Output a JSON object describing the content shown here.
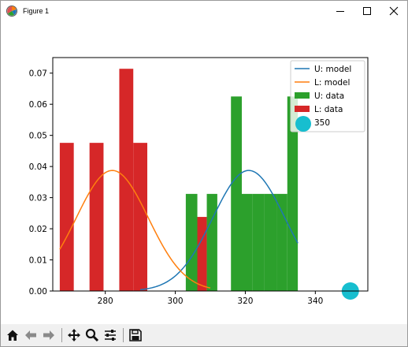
{
  "window": {
    "title": "Figure 1",
    "icons": {
      "app": "matplotlib-figure-icon",
      "minimize": "minimize-icon",
      "maximize": "maximize-icon",
      "close": "close-icon"
    }
  },
  "toolbar": {
    "items": [
      {
        "name": "home-icon"
      },
      {
        "name": "back-arrow-icon"
      },
      {
        "name": "forward-arrow-icon"
      },
      {
        "name": "pan-move-icon"
      },
      {
        "name": "zoom-magnifier-icon"
      },
      {
        "name": "configure-subplots-icon"
      },
      {
        "name": "save-floppy-icon"
      }
    ]
  },
  "chart_data": {
    "type": "bar",
    "xlim": [
      265,
      355
    ],
    "ylim": [
      0,
      0.075
    ],
    "x_ticks": [
      280,
      300,
      320,
      340
    ],
    "y_ticks": [
      0.0,
      0.01,
      0.02,
      0.03,
      0.04,
      0.05,
      0.06,
      0.07
    ],
    "x_tick_labels": [
      "280",
      "300",
      "320",
      "340"
    ],
    "y_tick_labels": [
      "0.00",
      "0.01",
      "0.02",
      "0.03",
      "0.04",
      "0.05",
      "0.06",
      "0.07"
    ],
    "grid": false,
    "legend_position": "top-right",
    "legend": [
      {
        "label": "U: model",
        "kind": "line",
        "color": "#1f77b4"
      },
      {
        "label": "L: model",
        "kind": "line",
        "color": "#ff7f0e"
      },
      {
        "label": "U: data",
        "kind": "patch",
        "color": "#2ca02c"
      },
      {
        "label": "L: data",
        "kind": "patch",
        "color": "#d62728"
      },
      {
        "label": "350",
        "kind": "marker",
        "color": "#17becf"
      }
    ],
    "series": [
      {
        "name": "U: data",
        "type": "histogram",
        "color": "#2ca02c",
        "bins": [
          {
            "x0": 303.0,
            "x1": 306.3,
            "y": 0.0312
          },
          {
            "x0": 309.0,
            "x1": 312.0,
            "y": 0.0312
          },
          {
            "x0": 315.9,
            "x1": 319.0,
            "y": 0.0625
          },
          {
            "x0": 319.0,
            "x1": 322.0,
            "y": 0.0312
          },
          {
            "x0": 322.0,
            "x1": 325.5,
            "y": 0.0312
          },
          {
            "x0": 325.5,
            "x1": 329.0,
            "y": 0.0312
          },
          {
            "x0": 329.0,
            "x1": 332.0,
            "y": 0.0312
          },
          {
            "x0": 332.0,
            "x1": 335.0,
            "y": 0.0625
          }
        ]
      },
      {
        "name": "L: data",
        "type": "histogram",
        "color": "#d62728",
        "bins": [
          {
            "x0": 267.0,
            "x1": 271.0,
            "y": 0.0476
          },
          {
            "x0": 275.5,
            "x1": 279.5,
            "y": 0.0476
          },
          {
            "x0": 284.0,
            "x1": 288.0,
            "y": 0.0714
          },
          {
            "x0": 288.0,
            "x1": 292.0,
            "y": 0.0476
          },
          {
            "x0": 305.0,
            "x1": 309.0,
            "y": 0.0238
          }
        ]
      },
      {
        "name": "U: model",
        "type": "normal_pdf",
        "mean": 321.0,
        "sd": 10.3,
        "x_range": [
          290,
          335
        ],
        "color": "#1f77b4"
      },
      {
        "name": "L: model",
        "type": "normal_pdf",
        "mean": 282.0,
        "sd": 10.3,
        "x_range": [
          267,
          310
        ],
        "color": "#ff7f0e"
      },
      {
        "name": "350",
        "type": "marker",
        "x": 350,
        "y": 0.0,
        "color": "#17becf"
      }
    ]
  }
}
